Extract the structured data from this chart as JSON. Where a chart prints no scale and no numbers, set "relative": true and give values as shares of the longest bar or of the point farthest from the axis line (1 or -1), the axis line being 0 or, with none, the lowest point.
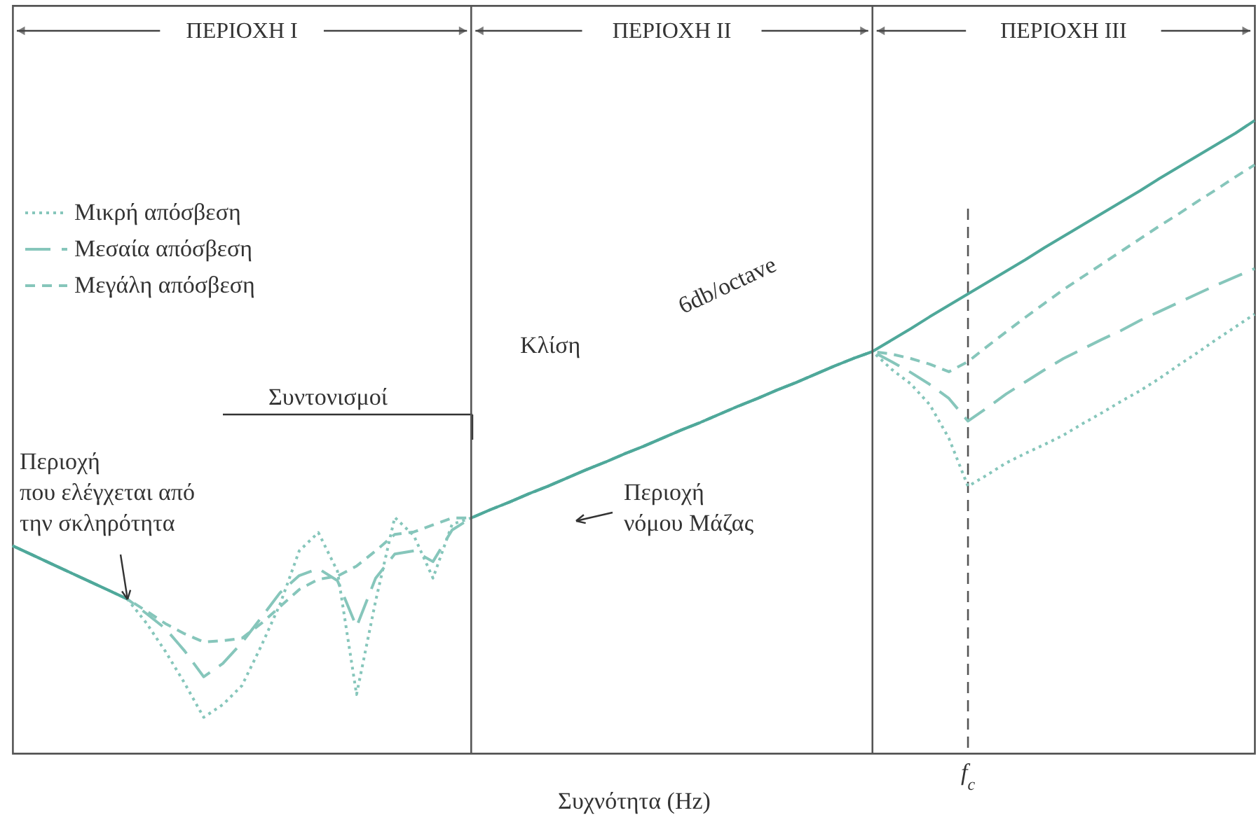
{
  "chart_data": {
    "type": "line",
    "relative": true,
    "xlabel": "Συχνότητα (Hz)",
    "legend": "top left",
    "categories": [
      null,
      null,
      null,
      null,
      null,
      null,
      null,
      null,
      null,
      null,
      null,
      null,
      null,
      null,
      null,
      null,
      null,
      null,
      null,
      null,
      null,
      null,
      null,
      null,
      null,
      null,
      null,
      null,
      null,
      null,
      null,
      null,
      null,
      null,
      null,
      null,
      null,
      null,
      null,
      null,
      null,
      null,
      null,
      null,
      null,
      null,
      null,
      null,
      null,
      null,
      null,
      null,
      null,
      null,
      null,
      null,
      null,
      null,
      null,
      null,
      null,
      null,
      null,
      null,
      null,
      null
    ],
    "series": [
      {
        "color": "#4fa89a",
        "line_style": "solid",
        "values": [
          0.328,
          0.314,
          0.3,
          0.286,
          0.272,
          0.258,
          0.244,
          null,
          null,
          null,
          null,
          null,
          null,
          null,
          null,
          null,
          null,
          null,
          null,
          null,
          null,
          null,
          null,
          null,
          null,
          null,
          null,
          null,
          null,
          null,
          null,
          null,
          null,
          null,
          null,
          null,
          null,
          null,
          null,
          null,
          null,
          null,
          null,
          null,
          null,
          null,
          null,
          null,
          null,
          null,
          null,
          null,
          null,
          null,
          null,
          null,
          null,
          null,
          null,
          null,
          null,
          null,
          null,
          null,
          null,
          null
        ]
      },
      {
        "color": "#4fa89a",
        "line_style": "solid",
        "values": [
          null,
          null,
          null,
          null,
          null,
          null,
          null,
          null,
          null,
          null,
          null,
          null,
          null,
          null,
          null,
          null,
          null,
          null,
          null,
          null,
          null,
          null,
          null,
          null,
          0.372,
          0.385,
          0.397,
          0.41,
          0.422,
          0.435,
          0.448,
          0.46,
          0.473,
          0.485,
          0.498,
          0.511,
          0.523,
          0.536,
          0.549,
          0.561,
          0.574,
          0.586,
          0.599,
          0.612,
          0.624,
          0.635,
          0.653,
          0.671,
          0.69,
          0.708,
          0.726,
          0.744,
          0.762,
          0.78,
          0.799,
          0.817,
          0.835,
          0.853,
          0.871,
          0.889,
          0.908,
          0.926,
          0.944,
          0.962,
          0.98,
          1.0
        ]
      },
      {
        "name": "Μικρή απόσβεση",
        "color": "#86c6bb",
        "line_style": "dotted",
        "values": [
          0.328,
          0.314,
          0.3,
          0.286,
          0.272,
          0.258,
          0.244,
          0.206,
          0.161,
          0.111,
          0.057,
          0.077,
          0.107,
          0.169,
          0.236,
          0.32,
          0.349,
          0.288,
          0.093,
          0.241,
          0.373,
          0.344,
          0.277,
          0.362,
          0.372,
          0.385,
          0.397,
          0.41,
          0.422,
          0.435,
          0.448,
          0.46,
          0.473,
          0.485,
          0.498,
          0.511,
          0.523,
          0.536,
          0.549,
          0.561,
          0.574,
          0.586,
          0.599,
          0.612,
          0.624,
          0.635,
          0.607,
          0.584,
          0.551,
          0.498,
          0.422,
          0.44,
          0.459,
          0.474,
          0.488,
          0.503,
          0.521,
          0.538,
          0.556,
          0.573,
          0.592,
          0.613,
          0.633,
          0.654,
          0.674,
          0.694
        ]
      },
      {
        "name": "Μεσαία απόσβεση",
        "color": "#86c6bb",
        "line_style": "dashed",
        "values": [
          0.328,
          0.314,
          0.3,
          0.286,
          0.272,
          0.258,
          0.244,
          0.221,
          0.197,
          0.162,
          0.121,
          0.142,
          0.175,
          0.214,
          0.254,
          0.281,
          0.292,
          0.273,
          0.2,
          0.277,
          0.315,
          0.32,
          0.303,
          0.353,
          0.372,
          0.385,
          0.397,
          0.41,
          0.422,
          0.435,
          0.448,
          0.46,
          0.473,
          0.485,
          0.498,
          0.511,
          0.523,
          0.536,
          0.549,
          0.561,
          0.574,
          0.586,
          0.599,
          0.612,
          0.624,
          0.635,
          0.619,
          0.602,
          0.583,
          0.561,
          0.525,
          0.546,
          0.568,
          0.587,
          0.606,
          0.624,
          0.639,
          0.654,
          0.668,
          0.684,
          0.698,
          0.712,
          0.726,
          0.74,
          0.753,
          0.766
        ]
      },
      {
        "name": "Μεγάλη απόσβεση",
        "color": "#86c6bb",
        "line_style": "dashed",
        "values": [
          0.328,
          0.314,
          0.3,
          0.286,
          0.272,
          0.258,
          0.244,
          0.225,
          0.205,
          0.189,
          0.176,
          0.178,
          0.182,
          0.205,
          0.232,
          0.259,
          0.275,
          0.28,
          0.296,
          0.32,
          0.346,
          0.35,
          0.361,
          0.372,
          0.372,
          0.385,
          0.397,
          0.41,
          0.422,
          0.435,
          0.448,
          0.46,
          0.473,
          0.485,
          0.498,
          0.511,
          0.523,
          0.536,
          0.549,
          0.561,
          0.574,
          0.586,
          0.599,
          0.612,
          0.624,
          0.635,
          0.631,
          0.624,
          0.615,
          0.603,
          0.619,
          0.643,
          0.666,
          0.689,
          0.711,
          0.733,
          0.753,
          0.773,
          0.793,
          0.813,
          0.833,
          0.852,
          0.872,
          0.891,
          0.911,
          0.93
        ]
      }
    ],
    "ref_lines": [
      {
        "axis": "x",
        "label": "f$_{c}$",
        "color": "#555555",
        "line_style": "dashed"
      }
    ],
    "annotations": [
      "Περιοχή\nπου ελέγχεται από\nτην σκληρότητα",
      "Περιοχή\nνόμου Μάζας",
      "Κλίση",
      "6db/octave",
      "Συντονισμοί",
      "ΠΕΡΙΟΧΗ I",
      "ΠΕΡΙΟΧΗ II",
      "ΠΕΡΙΟΧΗ III"
    ]
  }
}
